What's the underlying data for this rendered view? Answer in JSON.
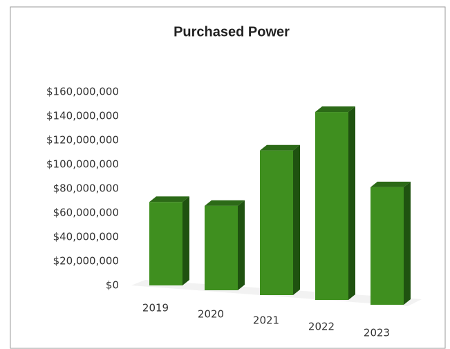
{
  "chart_data": {
    "type": "bar3d",
    "title": "Purchased Power",
    "categories": [
      "2019",
      "2020",
      "2021",
      "2022",
      "2023"
    ],
    "values": [
      69000000,
      67000000,
      114000000,
      147000000,
      86000000
    ],
    "color": "#3f8f1f",
    "ylim": [
      0,
      160000000
    ],
    "yticks": [
      {
        "value": 0,
        "label": "$0"
      },
      {
        "value": 20000000,
        "label": "$20,000,000"
      },
      {
        "value": 40000000,
        "label": "$40,000,000"
      },
      {
        "value": 60000000,
        "label": "$60,000,000"
      },
      {
        "value": 80000000,
        "label": "$80,000,000"
      },
      {
        "value": 100000000,
        "label": "$100,000,000"
      },
      {
        "value": 120000000,
        "label": "$120,000,000"
      },
      {
        "value": 140000000,
        "label": "$140,000,000"
      },
      {
        "value": 160000000,
        "label": "$160,000,000"
      }
    ],
    "grid": false
  }
}
